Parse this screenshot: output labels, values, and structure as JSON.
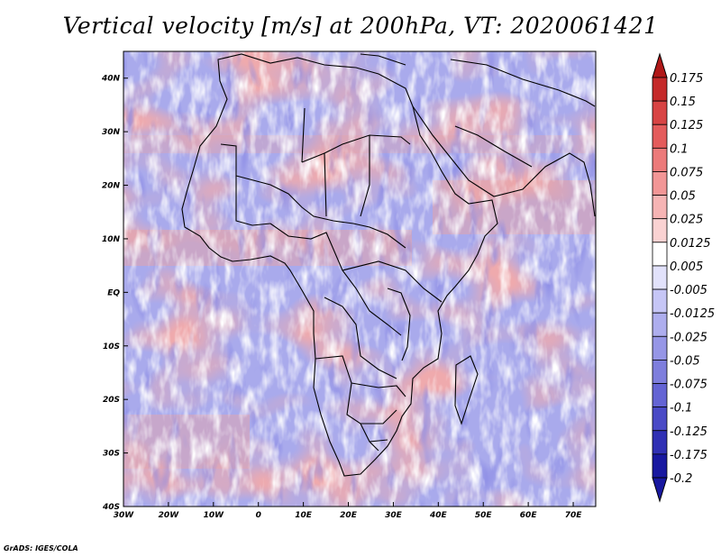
{
  "title": "Vertical velocity [m/s] at 200hPa, VT: 2020061421",
  "credit": "GrADS: IGES/COLA",
  "map": {
    "lat_labels": [
      "40N",
      "30N",
      "20N",
      "10N",
      "EQ",
      "10S",
      "20S",
      "30S",
      "40S"
    ],
    "lon_labels": [
      "30W",
      "20W",
      "10W",
      "0",
      "10E",
      "20E",
      "30E",
      "40E",
      "50E",
      "60E",
      "70E"
    ],
    "lon_range": [
      -30,
      75
    ],
    "lat_range": [
      -40,
      45
    ]
  },
  "colorbar": {
    "labels": [
      "0.175",
      "0.15",
      "0.125",
      "0.1",
      "0.075",
      "0.05",
      "0.025",
      "0.0125",
      "0.005",
      "-0.005",
      "-0.0125",
      "-0.025",
      "-0.05",
      "-0.075",
      "-0.1",
      "-0.125",
      "-0.175",
      "-0.2"
    ],
    "colors": [
      "#b01818",
      "#c52a2a",
      "#d84444",
      "#e45c5c",
      "#ec7a7a",
      "#f29696",
      "#f6b4b4",
      "#fad2d2",
      "#ffffff",
      "#e2e2fb",
      "#c6c6f6",
      "#aeaeee",
      "#9696e6",
      "#7e7edd",
      "#6464d4",
      "#4a4ac6",
      "#3030b4",
      "#1818a0"
    ]
  },
  "colors": {
    "background_red": "#e7a7a8",
    "background_blue": "#a5a6ea",
    "coast": "#000000"
  }
}
